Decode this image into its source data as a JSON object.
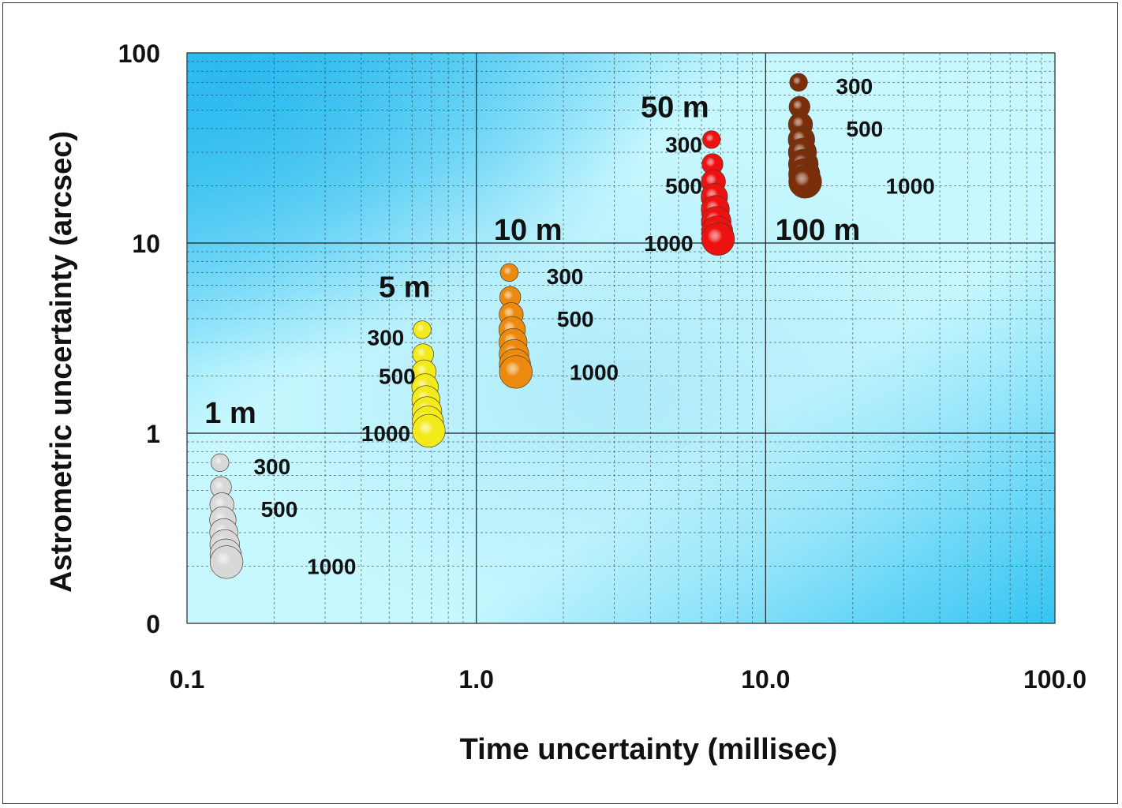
{
  "chart_data": {
    "type": "scatter",
    "subtype": "bubble",
    "title": "",
    "xlabel": "Time uncertainty (millisec)",
    "ylabel": "Astrometric uncertainty (arcsec)",
    "xscale": "log",
    "yscale": "log",
    "xlim": [
      0.1,
      100
    ],
    "ylim": [
      0.1,
      100
    ],
    "x_tick_labels": [
      "0.1",
      "1.0",
      "10.0",
      "100.0"
    ],
    "x_tick_values": [
      0.1,
      1,
      10,
      100
    ],
    "y_tick_labels": [
      "0",
      "1",
      "10",
      "100"
    ],
    "y_tick_values": [
      0.1,
      1,
      10,
      100
    ],
    "grid": true,
    "background": "blue-cyan gradient",
    "series": [
      {
        "label": "1 m",
        "color": "#d8d8d8",
        "points": [
          {
            "x": 0.13,
            "y": 0.7
          },
          {
            "x": 0.131,
            "y": 0.52
          },
          {
            "x": 0.132,
            "y": 0.42
          },
          {
            "x": 0.133,
            "y": 0.35
          },
          {
            "x": 0.134,
            "y": 0.3
          },
          {
            "x": 0.135,
            "y": 0.26
          },
          {
            "x": 0.136,
            "y": 0.23
          },
          {
            "x": 0.137,
            "y": 0.21
          }
        ],
        "level_labels": [
          {
            "text": "300",
            "x": 0.17,
            "y": 0.67
          },
          {
            "text": "500",
            "x": 0.18,
            "y": 0.4
          },
          {
            "text": "1000",
            "x": 0.26,
            "y": 0.2
          }
        ]
      },
      {
        "label": "5 m",
        "color": "#f2ea1a",
        "points": [
          {
            "x": 0.65,
            "y": 3.5
          },
          {
            "x": 0.655,
            "y": 2.6
          },
          {
            "x": 0.66,
            "y": 2.1
          },
          {
            "x": 0.665,
            "y": 1.75
          },
          {
            "x": 0.67,
            "y": 1.5
          },
          {
            "x": 0.675,
            "y": 1.3
          },
          {
            "x": 0.68,
            "y": 1.15
          },
          {
            "x": 0.685,
            "y": 1.03
          }
        ],
        "level_labels": [
          {
            "text": "300",
            "x": 0.42,
            "y": 3.2
          },
          {
            "text": "500",
            "x": 0.46,
            "y": 2.0
          },
          {
            "text": "1000",
            "x": 0.4,
            "y": 1.0
          }
        ]
      },
      {
        "label": "10 m",
        "color": "#ec8a10",
        "points": [
          {
            "x": 1.3,
            "y": 7.0
          },
          {
            "x": 1.31,
            "y": 5.2
          },
          {
            "x": 1.32,
            "y": 4.2
          },
          {
            "x": 1.33,
            "y": 3.5
          },
          {
            "x": 1.34,
            "y": 3.0
          },
          {
            "x": 1.35,
            "y": 2.6
          },
          {
            "x": 1.36,
            "y": 2.3
          },
          {
            "x": 1.37,
            "y": 2.1
          }
        ],
        "level_labels": [
          {
            "text": "300",
            "x": 1.75,
            "y": 6.7
          },
          {
            "text": "500",
            "x": 1.9,
            "y": 4.0
          },
          {
            "text": "1000",
            "x": 2.1,
            "y": 2.1
          }
        ]
      },
      {
        "label": "50 m",
        "color": "#ee1111",
        "points": [
          {
            "x": 6.5,
            "y": 35
          },
          {
            "x": 6.55,
            "y": 26
          },
          {
            "x": 6.6,
            "y": 21
          },
          {
            "x": 6.65,
            "y": 17.5
          },
          {
            "x": 6.7,
            "y": 15
          },
          {
            "x": 6.75,
            "y": 13
          },
          {
            "x": 6.8,
            "y": 11.5
          },
          {
            "x": 6.85,
            "y": 10.5
          }
        ],
        "level_labels": [
          {
            "text": "300",
            "x": 4.5,
            "y": 33
          },
          {
            "text": "500",
            "x": 4.5,
            "y": 20
          },
          {
            "text": "1000",
            "x": 3.8,
            "y": 10
          }
        ]
      },
      {
        "label": "100 m",
        "color": "#7a2e0a",
        "points": [
          {
            "x": 13.0,
            "y": 70
          },
          {
            "x": 13.1,
            "y": 52
          },
          {
            "x": 13.2,
            "y": 42
          },
          {
            "x": 13.3,
            "y": 35
          },
          {
            "x": 13.4,
            "y": 30
          },
          {
            "x": 13.5,
            "y": 26
          },
          {
            "x": 13.6,
            "y": 23
          },
          {
            "x": 13.7,
            "y": 21
          }
        ],
        "level_labels": [
          {
            "text": "300",
            "x": 17.5,
            "y": 67
          },
          {
            "text": "500",
            "x": 19,
            "y": 40
          },
          {
            "text": "1000",
            "x": 26,
            "y": 20
          }
        ]
      }
    ]
  }
}
